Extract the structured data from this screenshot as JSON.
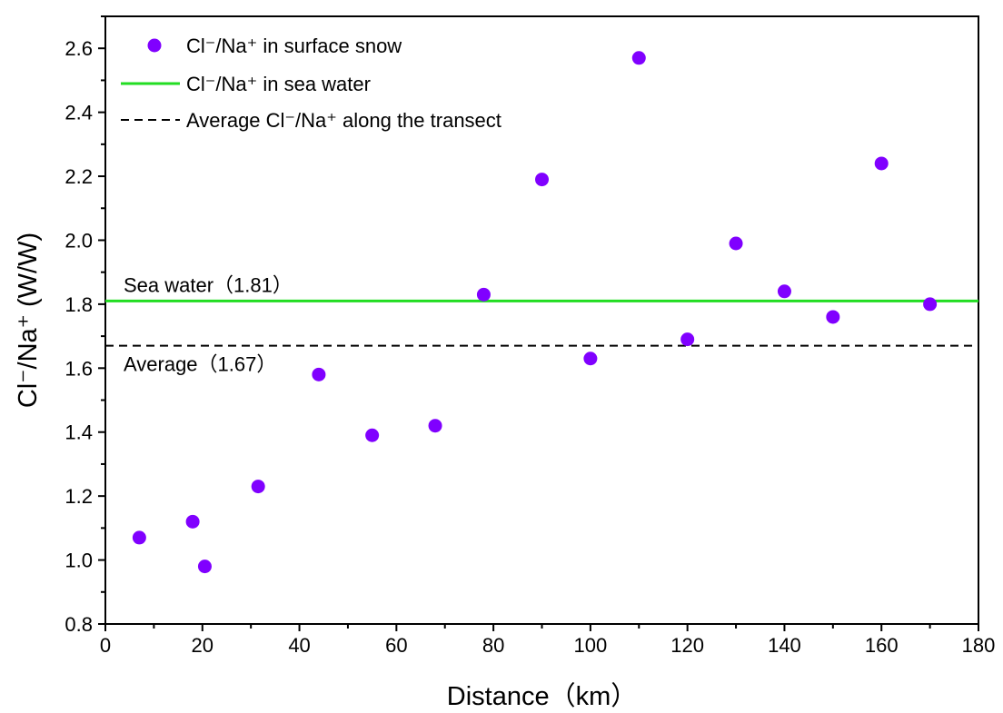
{
  "chart_data": {
    "type": "scatter",
    "title": "",
    "xlabel": "Distance（km）",
    "ylabel": "Cl⁻/Na⁺ (W/W)",
    "xlim": [
      0,
      180
    ],
    "ylim": [
      0.8,
      2.7
    ],
    "x_ticks": [
      "0",
      "20",
      "40",
      "60",
      "80",
      "100",
      "120",
      "140",
      "160",
      "180"
    ],
    "y_ticks": [
      "0.8",
      "1.0",
      "1.2",
      "1.4",
      "1.6",
      "1.8",
      "2.0",
      "2.2",
      "2.4",
      "2.6"
    ],
    "grid": false,
    "legend_position": "top-left",
    "series": [
      {
        "name": "Cl⁻/Na⁺ in surface snow",
        "kind": "points",
        "color": "#8000ff",
        "points": [
          {
            "x": 7,
            "y": 1.07
          },
          {
            "x": 18,
            "y": 1.12
          },
          {
            "x": 20.5,
            "y": 0.98
          },
          {
            "x": 31.5,
            "y": 1.23
          },
          {
            "x": 44,
            "y": 1.58
          },
          {
            "x": 55,
            "y": 1.39
          },
          {
            "x": 68,
            "y": 1.42
          },
          {
            "x": 78,
            "y": 1.83
          },
          {
            "x": 90,
            "y": 2.19
          },
          {
            "x": 100,
            "y": 1.63
          },
          {
            "x": 110,
            "y": 2.57
          },
          {
            "x": 120,
            "y": 1.69
          },
          {
            "x": 130,
            "y": 1.99
          },
          {
            "x": 140,
            "y": 1.84
          },
          {
            "x": 150,
            "y": 1.76
          },
          {
            "x": 160,
            "y": 2.24
          },
          {
            "x": 170,
            "y": 1.8
          }
        ]
      },
      {
        "name": "Cl⁻/Na⁺ in sea water",
        "kind": "hline",
        "color": "#22dd22",
        "y": 1.81
      },
      {
        "name": "Average Cl⁻/Na⁺ along the transect",
        "kind": "hline-dashed",
        "color": "#000000",
        "y": 1.67
      }
    ],
    "annotations": [
      {
        "text": "Sea water（1.81）",
        "line": "sea"
      },
      {
        "text": "Average（1.67）",
        "line": "avg"
      }
    ]
  }
}
